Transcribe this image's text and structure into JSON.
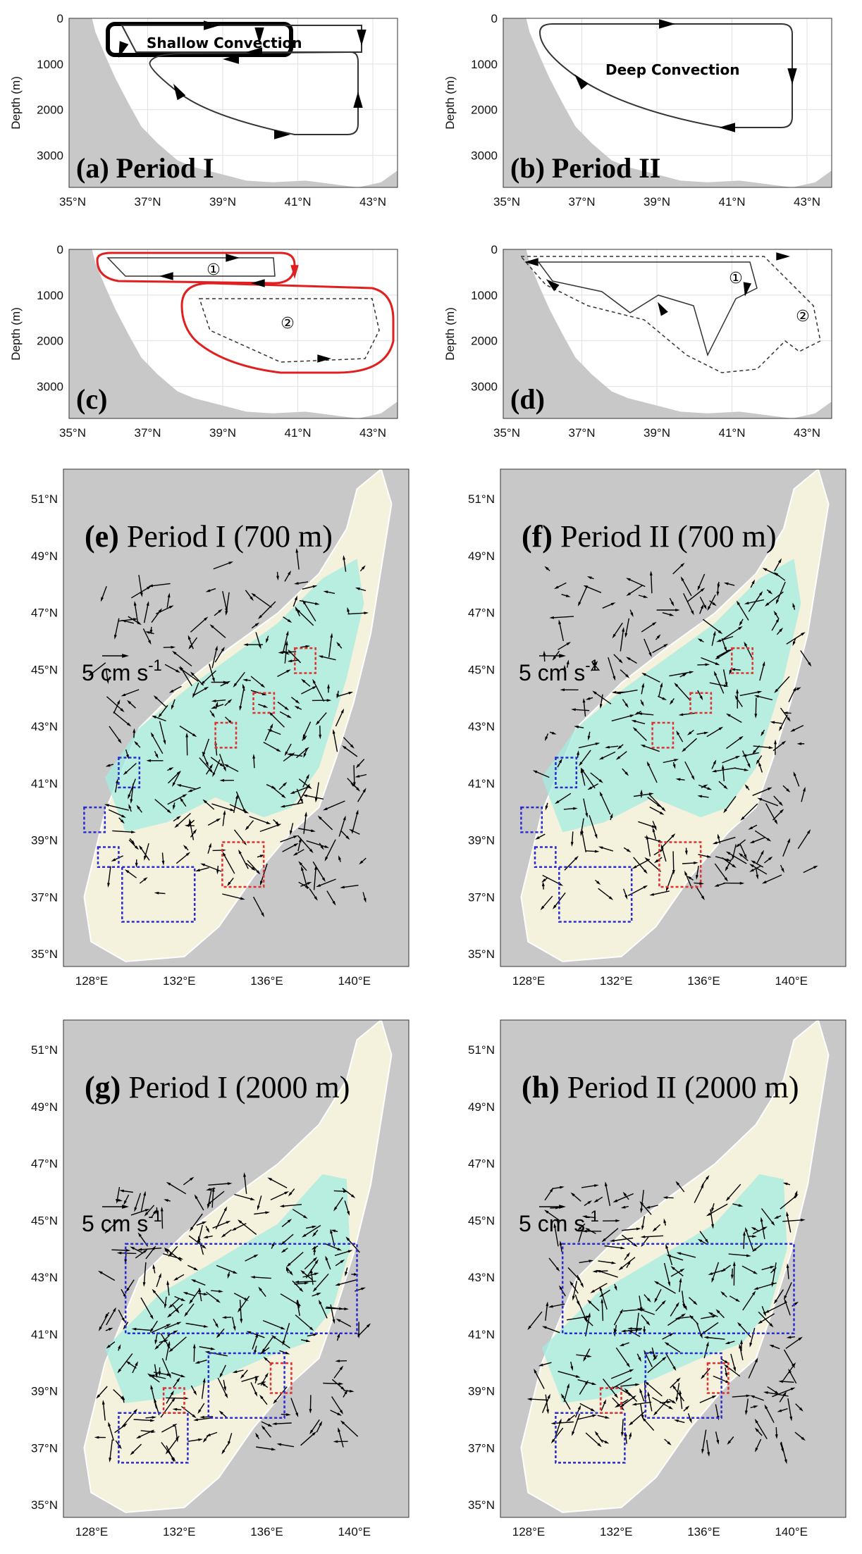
{
  "cross_sections": {
    "x_ticks": [
      "35°N",
      "37°N",
      "39°N",
      "41°N",
      "43°N"
    ],
    "y_ticks": [
      "0",
      "1000",
      "2000",
      "3000"
    ],
    "y_label": "Depth (m)"
  },
  "maps": {
    "y_ticks": [
      "51°N",
      "49°N",
      "47°N",
      "45°N",
      "43°N",
      "41°N",
      "39°N",
      "37°N",
      "35°N"
    ],
    "x_ticks": [
      "128°E",
      "132°E",
      "136°E",
      "140°E"
    ],
    "scale_label": "5 cm s",
    "scale_exp": "-1"
  },
  "panels": {
    "a": {
      "tag": "(a)",
      "title": "Period I",
      "annotation": "Shallow Convection"
    },
    "b": {
      "tag": "(b)",
      "title": "Period II",
      "annotation": "Deep Convection"
    },
    "c": {
      "tag": "(c)",
      "loop1": "①",
      "loop2": "②"
    },
    "d": {
      "tag": "(d)",
      "loop1": "①",
      "loop2": "②"
    },
    "e": {
      "tag": "(e)",
      "title": "Period I (700 m)"
    },
    "f": {
      "tag": "(f)",
      "title": "Period II (700 m)"
    },
    "g": {
      "tag": "(g)",
      "title": "Period I (2000 m)"
    },
    "h": {
      "tag": "(h)",
      "title": "Period II (2000 m)"
    }
  },
  "colors": {
    "land": "#c8c8c8",
    "sea": "#f4f1dc",
    "current": "#a3ece0",
    "red_box": "#e03030",
    "blue_box": "#2a2ad0",
    "red_loop": "#e02020"
  }
}
